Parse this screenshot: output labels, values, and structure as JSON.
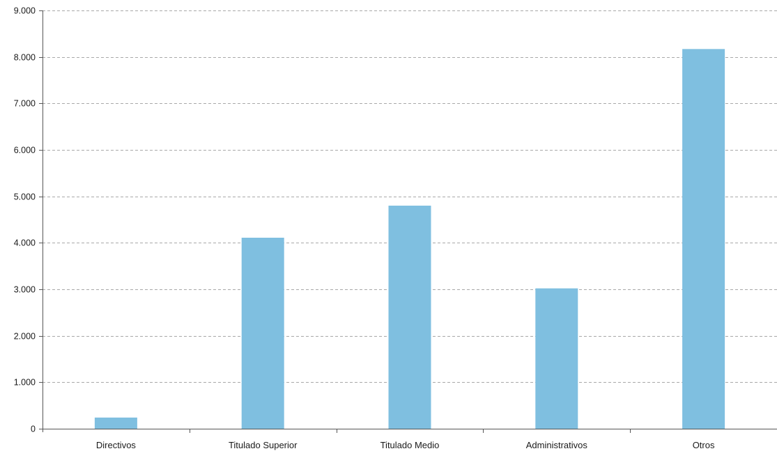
{
  "chart_data": {
    "type": "bar",
    "title": "",
    "xlabel": "",
    "ylabel": "",
    "categories": [
      "Directivos",
      "Titulado Superior",
      "Titulado Medio",
      "Administrativos",
      "Otros"
    ],
    "values": [
      240,
      4110,
      4800,
      3020,
      8170
    ],
    "ylim": [
      0,
      9000
    ],
    "yticks": [
      0,
      1000,
      2000,
      3000,
      4000,
      5000,
      6000,
      7000,
      8000,
      9000
    ],
    "ytick_labels": [
      "0",
      "1.000",
      "2.000",
      "3.000",
      "4.000",
      "5.000",
      "6.000",
      "7.000",
      "8.000",
      "9.000"
    ],
    "grid": true,
    "grid_style": "dashed",
    "legend": "none",
    "bar_color": "#7fbfe0",
    "grid_color": "#a8a8a8",
    "axis_color": "#555555"
  }
}
